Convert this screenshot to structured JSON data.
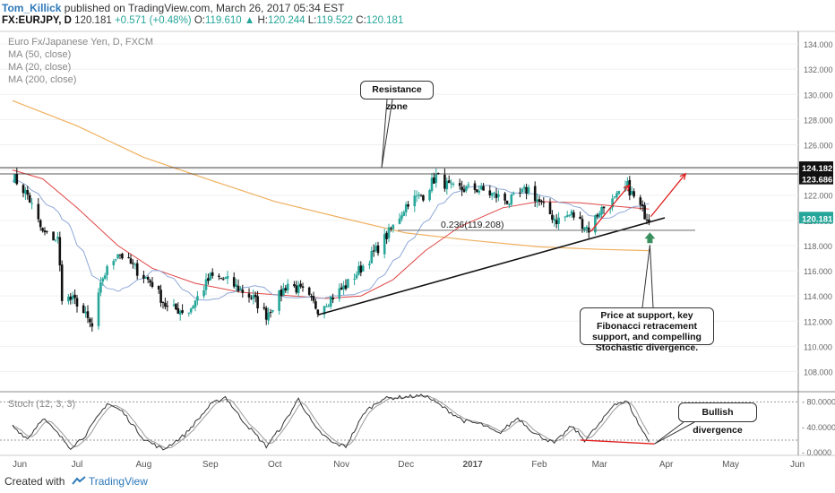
{
  "header": {
    "author": "Tom_Killick",
    "published_text": " published on TradingView.com, March 26, 2017 05:34 EST",
    "symbol": "FX:EURJPY, D",
    "last": "120.181",
    "change": "+0.571 (+0.48%)",
    "ohlc_o_label": "O:",
    "ohlc_o": "119.610",
    "ohlc_h_label": "H:",
    "ohlc_h": "120.244",
    "ohlc_l_label": "L:",
    "ohlc_l": "119.522",
    "ohlc_c_label": "C:",
    "ohlc_c": "120.181"
  },
  "legend": {
    "title": "Euro Fx/Japanese Yen, D, FXCM",
    "ma50": "MA (50, close)",
    "ma20": "MA (20, close)",
    "ma200": "MA (200, close)"
  },
  "annotations": {
    "resistance": "Resistance zone",
    "fib": "0.236(119.208)",
    "support": "Price at support, key Fibonacci retracement support, and compelling Stochastic divergence.",
    "bullish": "Bullish divergence"
  },
  "stoch_label": "Stoch (12, 3, 3)",
  "footer": {
    "created": "Created with",
    "brand": "TradingView"
  },
  "colors": {
    "up": "#26a69a",
    "down": "#111111",
    "ma50": "#e04545",
    "ma20": "#8fa8d8",
    "ma200": "#f0b060",
    "arrow": "#e02020",
    "support_arrow": "#3a8f5f",
    "trendline": "#111111"
  },
  "chart_data": {
    "type": "candlestick",
    "x_ticks": [
      "Jun",
      "Jul",
      "Aug",
      "Sep",
      "Oct",
      "Nov",
      "Dec",
      "2017",
      "Feb",
      "Mar",
      "Apr",
      "May",
      "Jun"
    ],
    "y_ticks": [
      "134.000",
      "132.000",
      "130.000",
      "128.000",
      "126.000",
      "124.000",
      "122.000",
      "120.000",
      "118.000",
      "116.000",
      "114.000",
      "112.000",
      "110.000",
      "108.000"
    ],
    "ylim": [
      106.4,
      135.0
    ],
    "price_labels": {
      "resistance_upper": "124.182",
      "resistance_lower": "123.686",
      "last": "120.181"
    },
    "resistance_levels": [
      124.182,
      123.686
    ],
    "fib_level": 119.208,
    "trendline": {
      "from": {
        "date": "2016-10-21",
        "price": 112.5
      },
      "to": {
        "date": "2017-03-23",
        "price": 119.8
      }
    },
    "anchors": [
      {
        "date": "2016-06-01",
        "price": 123.5
      },
      {
        "date": "2016-06-08",
        "price": 122.0
      },
      {
        "date": "2016-06-15",
        "price": 119.0
      },
      {
        "date": "2016-06-22",
        "price": 118.5
      },
      {
        "date": "2016-06-24",
        "price": 114.0
      },
      {
        "date": "2016-07-01",
        "price": 113.5
      },
      {
        "date": "2016-07-08",
        "price": 111.5
      },
      {
        "date": "2016-07-13",
        "price": 115.5
      },
      {
        "date": "2016-07-20",
        "price": 117.5
      },
      {
        "date": "2016-07-29",
        "price": 116.0
      },
      {
        "date": "2016-08-05",
        "price": 115.0
      },
      {
        "date": "2016-08-12",
        "price": 113.0
      },
      {
        "date": "2016-08-22",
        "price": 112.8
      },
      {
        "date": "2016-09-01",
        "price": 115.5
      },
      {
        "date": "2016-09-08",
        "price": 115.3
      },
      {
        "date": "2016-09-21",
        "price": 113.8
      },
      {
        "date": "2016-09-27",
        "price": 112.5
      },
      {
        "date": "2016-10-07",
        "price": 115.0
      },
      {
        "date": "2016-10-14",
        "price": 114.3
      },
      {
        "date": "2016-10-21",
        "price": 113.0
      },
      {
        "date": "2016-11-03",
        "price": 114.8
      },
      {
        "date": "2016-11-09",
        "price": 116.0
      },
      {
        "date": "2016-11-17",
        "price": 117.6
      },
      {
        "date": "2016-11-25",
        "price": 119.5
      },
      {
        "date": "2016-12-02",
        "price": 121.5
      },
      {
        "date": "2016-12-09",
        "price": 122.0
      },
      {
        "date": "2016-12-15",
        "price": 123.5
      },
      {
        "date": "2016-12-22",
        "price": 122.5
      },
      {
        "date": "2017-01-03",
        "price": 122.5
      },
      {
        "date": "2017-01-11",
        "price": 122.0
      },
      {
        "date": "2017-01-18",
        "price": 121.5
      },
      {
        "date": "2017-01-27",
        "price": 122.5
      },
      {
        "date": "2017-02-03",
        "price": 121.0
      },
      {
        "date": "2017-02-09",
        "price": 120.0
      },
      {
        "date": "2017-02-16",
        "price": 120.5
      },
      {
        "date": "2017-02-24",
        "price": 119.3
      },
      {
        "date": "2017-03-01",
        "price": 120.8
      },
      {
        "date": "2017-03-08",
        "price": 121.6
      },
      {
        "date": "2017-03-14",
        "price": 122.7
      },
      {
        "date": "2017-03-17",
        "price": 121.8
      },
      {
        "date": "2017-03-22",
        "price": 120.5
      },
      {
        "date": "2017-03-24",
        "price": 120.2
      }
    ],
    "ma200_path": [
      {
        "date": "2016-06-01",
        "price": 129.5
      },
      {
        "date": "2016-07-01",
        "price": 127.5
      },
      {
        "date": "2016-08-01",
        "price": 125.0
      },
      {
        "date": "2016-09-01",
        "price": 123.2
      },
      {
        "date": "2016-10-01",
        "price": 121.5
      },
      {
        "date": "2016-11-01",
        "price": 120.2
      },
      {
        "date": "2016-12-01",
        "price": 119.0
      },
      {
        "date": "2017-01-01",
        "price": 118.4
      },
      {
        "date": "2017-02-01",
        "price": 117.9
      },
      {
        "date": "2017-03-01",
        "price": 117.7
      },
      {
        "date": "2017-03-24",
        "price": 117.6
      }
    ],
    "ma50_path": [
      {
        "date": "2016-06-01",
        "price": 124.0
      },
      {
        "date": "2016-06-15",
        "price": 123.3
      },
      {
        "date": "2016-07-01",
        "price": 121.0
      },
      {
        "date": "2016-07-20",
        "price": 118.0
      },
      {
        "date": "2016-08-05",
        "price": 116.2
      },
      {
        "date": "2016-08-25",
        "price": 115.0
      },
      {
        "date": "2016-09-15",
        "price": 114.3
      },
      {
        "date": "2016-10-10",
        "price": 114.0
      },
      {
        "date": "2016-10-25",
        "price": 113.8
      },
      {
        "date": "2016-11-10",
        "price": 114.0
      },
      {
        "date": "2016-11-25",
        "price": 115.3
      },
      {
        "date": "2016-12-10",
        "price": 117.6
      },
      {
        "date": "2016-12-26",
        "price": 119.5
      },
      {
        "date": "2017-01-15",
        "price": 121.0
      },
      {
        "date": "2017-02-01",
        "price": 121.5
      },
      {
        "date": "2017-02-20",
        "price": 121.4
      },
      {
        "date": "2017-03-10",
        "price": 121.1
      },
      {
        "date": "2017-03-24",
        "price": 120.9
      }
    ],
    "stochastic": {
      "ylim": [
        -4,
        96
      ],
      "y_ticks": [
        "80.0000",
        "40.0000",
        "0.0000"
      ],
      "levels": [
        80,
        20
      ],
      "anchors": [
        {
          "date": "2016-06-01",
          "k": 42
        },
        {
          "date": "2016-06-08",
          "k": 22
        },
        {
          "date": "2016-06-15",
          "k": 55
        },
        {
          "date": "2016-06-22",
          "k": 30
        },
        {
          "date": "2016-06-28",
          "k": 8
        },
        {
          "date": "2016-07-05",
          "k": 28
        },
        {
          "date": "2016-07-15",
          "k": 78
        },
        {
          "date": "2016-07-22",
          "k": 65
        },
        {
          "date": "2016-08-01",
          "k": 22
        },
        {
          "date": "2016-08-10",
          "k": 5
        },
        {
          "date": "2016-08-20",
          "k": 28
        },
        {
          "date": "2016-09-01",
          "k": 75
        },
        {
          "date": "2016-09-08",
          "k": 88
        },
        {
          "date": "2016-09-15",
          "k": 55
        },
        {
          "date": "2016-09-27",
          "k": 10
        },
        {
          "date": "2016-10-05",
          "k": 45
        },
        {
          "date": "2016-10-12",
          "k": 85
        },
        {
          "date": "2016-10-20",
          "k": 38
        },
        {
          "date": "2016-10-28",
          "k": 15
        },
        {
          "date": "2016-11-03",
          "k": 10
        },
        {
          "date": "2016-11-12",
          "k": 65
        },
        {
          "date": "2016-11-20",
          "k": 85
        },
        {
          "date": "2016-12-01",
          "k": 88
        },
        {
          "date": "2016-12-10",
          "k": 90
        },
        {
          "date": "2016-12-18",
          "k": 72
        },
        {
          "date": "2016-12-28",
          "k": 50
        },
        {
          "date": "2017-01-05",
          "k": 45
        },
        {
          "date": "2017-01-13",
          "k": 30
        },
        {
          "date": "2017-01-22",
          "k": 55
        },
        {
          "date": "2017-01-30",
          "k": 30
        },
        {
          "date": "2017-02-08",
          "k": 15
        },
        {
          "date": "2017-02-16",
          "k": 42
        },
        {
          "date": "2017-02-22",
          "k": 20
        },
        {
          "date": "2017-03-01",
          "k": 45
        },
        {
          "date": "2017-03-08",
          "k": 78
        },
        {
          "date": "2017-03-14",
          "k": 80
        },
        {
          "date": "2017-03-20",
          "k": 40
        },
        {
          "date": "2017-03-24",
          "k": 18
        }
      ],
      "divergence_line": {
        "from": {
          "date": "2017-02-20",
          "k": 20
        },
        "to": {
          "date": "2017-03-24",
          "k": 14
        }
      }
    }
  }
}
